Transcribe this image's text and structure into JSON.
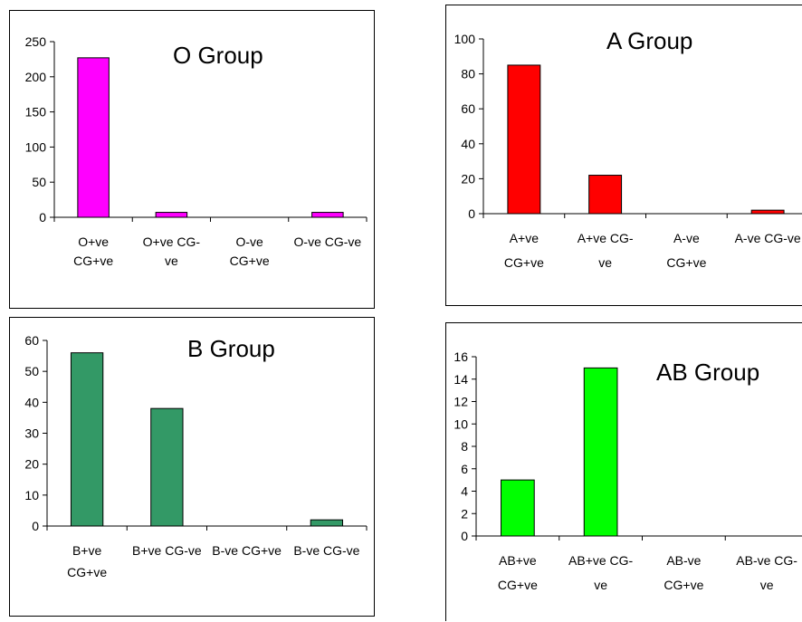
{
  "charts": [
    {
      "id": "o-group",
      "chart_data": {
        "type": "bar",
        "title": "O Group",
        "categories": [
          [
            "O+ve",
            "CG+ve"
          ],
          [
            "O+ve CG-",
            "ve"
          ],
          [
            "O-ve",
            "CG+ve"
          ],
          [
            "O-ve CG-ve"
          ]
        ],
        "values": [
          227,
          7,
          0,
          7
        ],
        "ylim": [
          0,
          250
        ],
        "yticks": [
          0,
          50,
          100,
          150,
          200,
          250
        ],
        "grid": false,
        "legend": "none",
        "color": "#FF00FF"
      }
    },
    {
      "id": "a-group",
      "chart_data": {
        "type": "bar",
        "title": "A Group",
        "categories": [
          [
            "A+ve",
            "CG+ve"
          ],
          [
            "A+ve CG-",
            "ve"
          ],
          [
            "A-ve",
            "CG+ve"
          ],
          [
            "A-ve CG-ve"
          ]
        ],
        "values": [
          85,
          22,
          0,
          2
        ],
        "ylim": [
          0,
          100
        ],
        "yticks": [
          0,
          20,
          40,
          60,
          80,
          100
        ],
        "grid": false,
        "legend": "none",
        "color": "#FF0000"
      }
    },
    {
      "id": "b-group",
      "chart_data": {
        "type": "bar",
        "title": "B Group",
        "categories": [
          [
            "B+ve",
            "CG+ve"
          ],
          [
            "B+ve CG-ve"
          ],
          [
            "B-ve CG+ve"
          ],
          [
            "B-ve CG-ve"
          ]
        ],
        "values": [
          56,
          38,
          0,
          2
        ],
        "ylim": [
          0,
          60
        ],
        "yticks": [
          0,
          10,
          20,
          30,
          40,
          50,
          60
        ],
        "grid": false,
        "legend": "none",
        "color": "#339966"
      }
    },
    {
      "id": "ab-group",
      "chart_data": {
        "type": "bar",
        "title": "AB Group",
        "categories": [
          [
            "AB+ve",
            "CG+ve"
          ],
          [
            "AB+ve CG-",
            "ve"
          ],
          [
            "AB-ve",
            "CG+ve"
          ],
          [
            "AB-ve CG-",
            "ve"
          ]
        ],
        "values": [
          5,
          15,
          0,
          0
        ],
        "ylim": [
          0,
          16
        ],
        "yticks": [
          0,
          2,
          4,
          6,
          8,
          10,
          12,
          14,
          16
        ],
        "grid": false,
        "legend": "none",
        "color": "#00FF00"
      }
    }
  ]
}
